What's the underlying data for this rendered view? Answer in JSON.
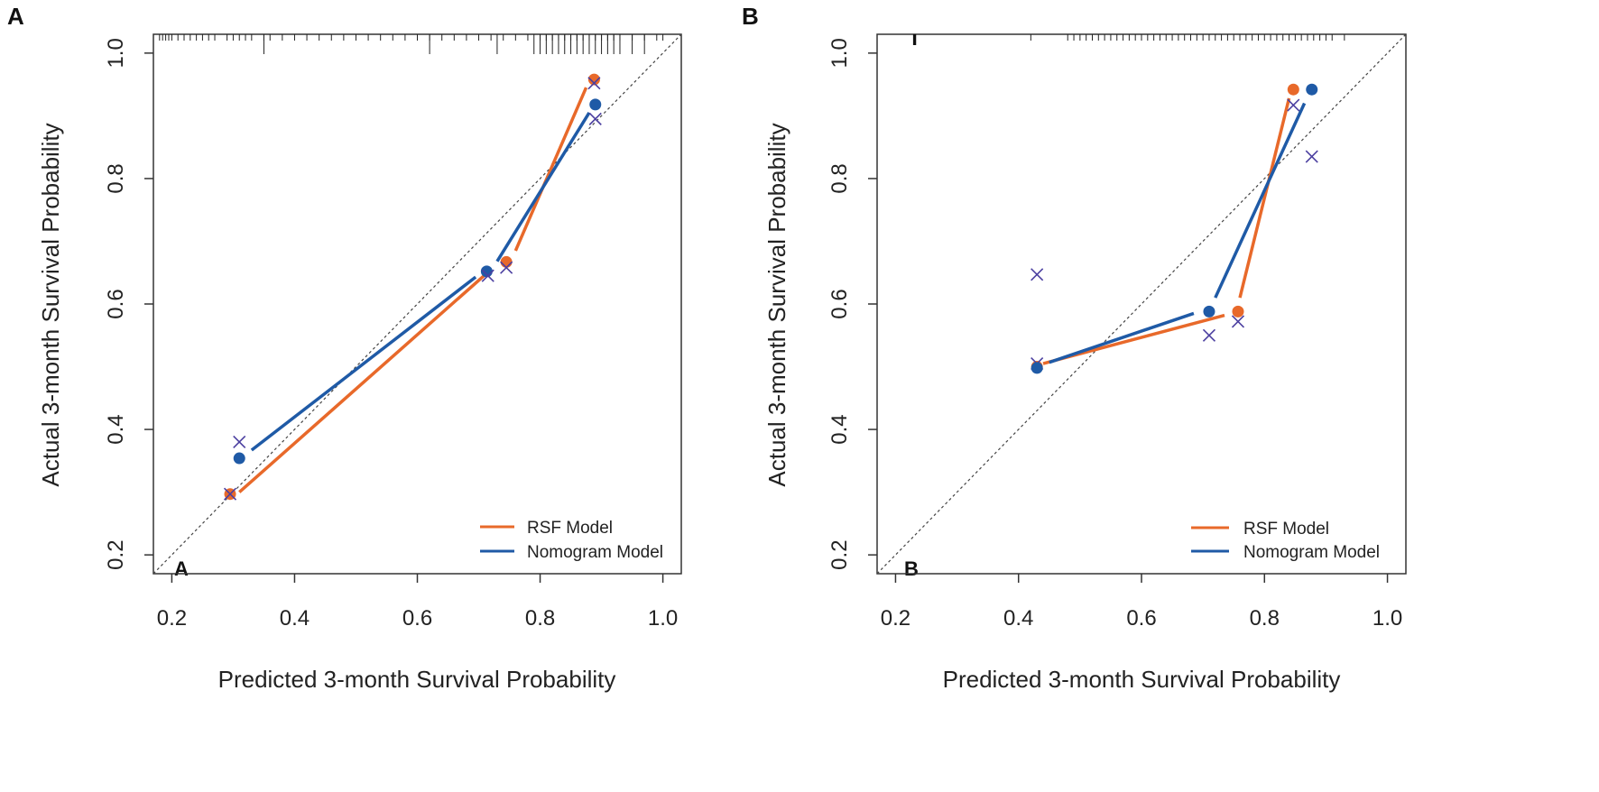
{
  "colors": {
    "rsf": "#E8692A",
    "nomogram": "#1F5AA6",
    "cross": "#4B3FA0",
    "axis": "#333333",
    "reference": "#444444"
  },
  "chart_data": [
    {
      "type": "scatter",
      "panel_label": "A",
      "inner_label": "A",
      "xlabel": "Predicted 3-month Survival Probability",
      "ylabel": "Actual 3-month Survival Probability",
      "xlim": [
        0.17,
        1.03
      ],
      "ylim": [
        0.17,
        1.03
      ],
      "x_ticks": [
        "0.2",
        "0.4",
        "0.6",
        "0.8",
        "1.0"
      ],
      "y_ticks": [
        "0.2",
        "0.4",
        "0.6",
        "0.8",
        "1.0"
      ],
      "legend": [
        "RSF Model",
        "Nomogram Model"
      ],
      "legend_position": "bottom-right",
      "reference_line": "y = x",
      "series": [
        {
          "name": "RSF Model",
          "points": [
            [
              0.295,
              0.297
            ],
            [
              0.745,
              0.667
            ],
            [
              0.888,
              0.958
            ]
          ],
          "crosses": [
            [
              0.295,
              0.297
            ],
            [
              0.745,
              0.658
            ],
            [
              0.888,
              0.952
            ]
          ],
          "segments": [
            [
              [
                0.31,
                0.3
              ],
              [
                0.72,
                0.655
              ]
            ],
            [
              [
                0.76,
                0.685
              ],
              [
                0.875,
                0.945
              ]
            ]
          ]
        },
        {
          "name": "Nomogram Model",
          "points": [
            [
              0.31,
              0.354
            ],
            [
              0.713,
              0.652
            ],
            [
              0.89,
              0.918
            ]
          ],
          "crosses": [
            [
              0.31,
              0.38
            ],
            [
              0.715,
              0.645
            ],
            [
              0.89,
              0.895
            ]
          ],
          "segments": [
            [
              [
                0.33,
                0.367
              ],
              [
                0.695,
                0.643
              ]
            ],
            [
              [
                0.73,
                0.668
              ],
              [
                0.88,
                0.905
              ]
            ]
          ]
        }
      ],
      "rug": [
        0.18,
        0.185,
        0.19,
        0.195,
        0.2,
        0.21,
        0.22,
        0.23,
        0.24,
        0.25,
        0.26,
        0.27,
        0.29,
        0.3,
        0.31,
        0.32,
        0.33,
        0.35,
        0.36,
        0.38,
        0.4,
        0.42,
        0.44,
        0.46,
        0.48,
        0.5,
        0.52,
        0.54,
        0.56,
        0.58,
        0.6,
        0.62,
        0.64,
        0.66,
        0.68,
        0.7,
        0.72,
        0.74,
        0.76,
        0.78,
        0.8,
        0.81,
        0.82,
        0.83,
        0.84,
        0.85,
        0.86,
        0.87,
        0.88,
        0.89,
        0.9,
        0.91,
        0.92,
        0.93,
        0.95,
        0.97,
        0.99,
        1.0
      ],
      "rug_tall": [
        0.35,
        0.62,
        0.73,
        0.79,
        0.8,
        0.81,
        0.82,
        0.83,
        0.84,
        0.85,
        0.86,
        0.87,
        0.88,
        0.89,
        0.9,
        0.91,
        0.92,
        0.93,
        0.95,
        0.97
      ]
    },
    {
      "type": "scatter",
      "panel_label": "B",
      "inner_label": "B",
      "xlabel": "Predicted 3-month Survival Probability",
      "ylabel": "Actual 3-month Survival Probability",
      "xlim": [
        0.17,
        1.03
      ],
      "ylim": [
        0.17,
        1.03
      ],
      "x_ticks": [
        "0.2",
        "0.4",
        "0.6",
        "0.8",
        "1.0"
      ],
      "y_ticks": [
        "0.2",
        "0.4",
        "0.6",
        "0.8",
        "1.0"
      ],
      "legend": [
        "RSF Model",
        "Nomogram Model"
      ],
      "legend_position": "bottom-right",
      "reference_line": "y = x",
      "series": [
        {
          "name": "RSF Model",
          "points": [
            [
              0.43,
              0.5
            ],
            [
              0.757,
              0.588
            ],
            [
              0.847,
              0.942
            ]
          ],
          "crosses": [
            [
              0.43,
              0.505
            ],
            [
              0.757,
              0.572
            ],
            [
              0.847,
              0.917
            ]
          ],
          "segments": [
            [
              [
                0.44,
                0.505
              ],
              [
                0.735,
                0.582
              ]
            ],
            [
              [
                0.76,
                0.61
              ],
              [
                0.84,
                0.928
              ]
            ]
          ]
        },
        {
          "name": "Nomogram Model",
          "points": [
            [
              0.43,
              0.498
            ],
            [
              0.71,
              0.588
            ],
            [
              0.877,
              0.942
            ]
          ],
          "crosses": [
            [
              0.43,
              0.647
            ],
            [
              0.71,
              0.55
            ],
            [
              0.877,
              0.835
            ]
          ],
          "segments": [
            [
              [
                0.45,
                0.507
              ],
              [
                0.685,
                0.585
              ]
            ],
            [
              [
                0.72,
                0.61
              ],
              [
                0.865,
                0.92
              ]
            ]
          ]
        }
      ],
      "rug": [
        0.23,
        0.232,
        0.42,
        0.48,
        0.49,
        0.5,
        0.51,
        0.52,
        0.53,
        0.54,
        0.55,
        0.56,
        0.57,
        0.58,
        0.59,
        0.6,
        0.61,
        0.62,
        0.63,
        0.64,
        0.65,
        0.66,
        0.67,
        0.68,
        0.69,
        0.7,
        0.71,
        0.72,
        0.73,
        0.74,
        0.75,
        0.76,
        0.77,
        0.78,
        0.79,
        0.8,
        0.81,
        0.82,
        0.83,
        0.84,
        0.85,
        0.86,
        0.87,
        0.88,
        0.89,
        0.9,
        0.91,
        0.93
      ],
      "rug_tall": []
    }
  ]
}
